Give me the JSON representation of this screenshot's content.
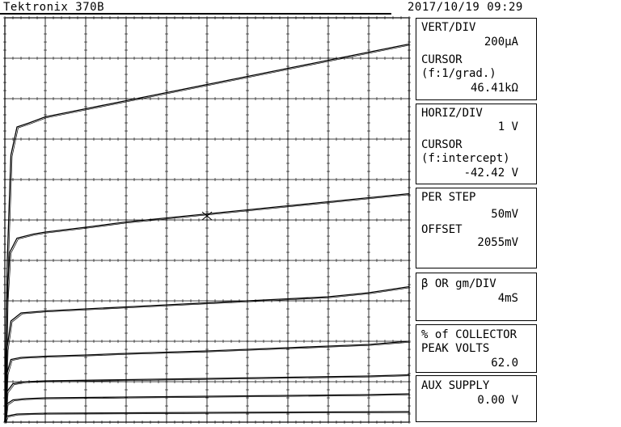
{
  "header": {
    "instrument": "Tektronix 370B",
    "datetime": "2017/10/19 09:29"
  },
  "panels": {
    "vert": {
      "label": "VERT/DIV",
      "value": "200µA",
      "cursor_label": "CURSOR",
      "cursor_mode": "(f:1/grad.)",
      "cursor_value": "46.41kΩ"
    },
    "horiz": {
      "label": "HORIZ/DIV",
      "value": "1 V",
      "cursor_label": "CURSOR",
      "cursor_mode": "(f:intercept)",
      "cursor_value": "-42.42 V"
    },
    "step": {
      "label": "PER STEP",
      "value": "50mV",
      "offset_label": "OFFSET",
      "offset_value": "2055mV"
    },
    "beta": {
      "label": "β OR gm/DIV",
      "value": "4mS"
    },
    "collector": {
      "label1": "% of COLLECTOR",
      "label2": "PEAK VOLTS",
      "value": "62.0"
    },
    "aux": {
      "label": "AUX SUPPLY",
      "value": "0.00 V"
    }
  },
  "chart_data": {
    "type": "line",
    "xlabel": "",
    "ylabel": "",
    "xlim": [
      0,
      10
    ],
    "ylim": [
      0,
      10
    ],
    "grid": true,
    "cursor": {
      "x": 5.0,
      "y": 5.1
    },
    "series": [
      {
        "values": [
          [
            0,
            0
          ],
          [
            0.06,
            4
          ],
          [
            0.15,
            6.6
          ],
          [
            0.3,
            7.3
          ],
          [
            0.6,
            7.4
          ],
          [
            1,
            7.55
          ],
          [
            2,
            7.75
          ],
          [
            3,
            7.95
          ],
          [
            4,
            8.15
          ],
          [
            5,
            8.35
          ],
          [
            6,
            8.55
          ],
          [
            7,
            8.75
          ],
          [
            8,
            8.95
          ],
          [
            9,
            9.15
          ],
          [
            10,
            9.35
          ]
        ]
      },
      {
        "values": [
          [
            0,
            0
          ],
          [
            0.05,
            3
          ],
          [
            0.12,
            4.2
          ],
          [
            0.3,
            4.55
          ],
          [
            0.7,
            4.65
          ],
          [
            1,
            4.7
          ],
          [
            2,
            4.82
          ],
          [
            3,
            4.95
          ],
          [
            4,
            5.05
          ],
          [
            5,
            5.15
          ],
          [
            6,
            5.25
          ],
          [
            7,
            5.35
          ],
          [
            8,
            5.45
          ],
          [
            9,
            5.55
          ],
          [
            10,
            5.65
          ]
        ]
      },
      {
        "values": [
          [
            0,
            0
          ],
          [
            0.05,
            1.8
          ],
          [
            0.15,
            2.5
          ],
          [
            0.4,
            2.7
          ],
          [
            1,
            2.75
          ],
          [
            2,
            2.8
          ],
          [
            3,
            2.85
          ],
          [
            4,
            2.9
          ],
          [
            5,
            2.95
          ],
          [
            6,
            3.0
          ],
          [
            7,
            3.05
          ],
          [
            8,
            3.1
          ],
          [
            9,
            3.2
          ],
          [
            10,
            3.35
          ]
        ]
      },
      {
        "values": [
          [
            0,
            0
          ],
          [
            0.05,
            1.2
          ],
          [
            0.15,
            1.55
          ],
          [
            0.4,
            1.6
          ],
          [
            1,
            1.63
          ],
          [
            2,
            1.66
          ],
          [
            3,
            1.7
          ],
          [
            4,
            1.73
          ],
          [
            5,
            1.76
          ],
          [
            6,
            1.8
          ],
          [
            7,
            1.84
          ],
          [
            8,
            1.88
          ],
          [
            9,
            1.92
          ],
          [
            10,
            2.0
          ]
        ]
      },
      {
        "values": [
          [
            0,
            0
          ],
          [
            0.05,
            0.75
          ],
          [
            0.2,
            0.95
          ],
          [
            0.5,
            1.0
          ],
          [
            1,
            1.02
          ],
          [
            3,
            1.05
          ],
          [
            5,
            1.08
          ],
          [
            7,
            1.11
          ],
          [
            9,
            1.14
          ],
          [
            10,
            1.17
          ]
        ]
      },
      {
        "values": [
          [
            0,
            0
          ],
          [
            0.05,
            0.45
          ],
          [
            0.2,
            0.55
          ],
          [
            0.5,
            0.58
          ],
          [
            1,
            0.6
          ],
          [
            3,
            0.62
          ],
          [
            5,
            0.64
          ],
          [
            7,
            0.66
          ],
          [
            9,
            0.68
          ],
          [
            10,
            0.7
          ]
        ]
      },
      {
        "values": [
          [
            0,
            0
          ],
          [
            0.05,
            0.15
          ],
          [
            0.3,
            0.2
          ],
          [
            1,
            0.22
          ],
          [
            5,
            0.24
          ],
          [
            10,
            0.26
          ]
        ]
      }
    ]
  }
}
